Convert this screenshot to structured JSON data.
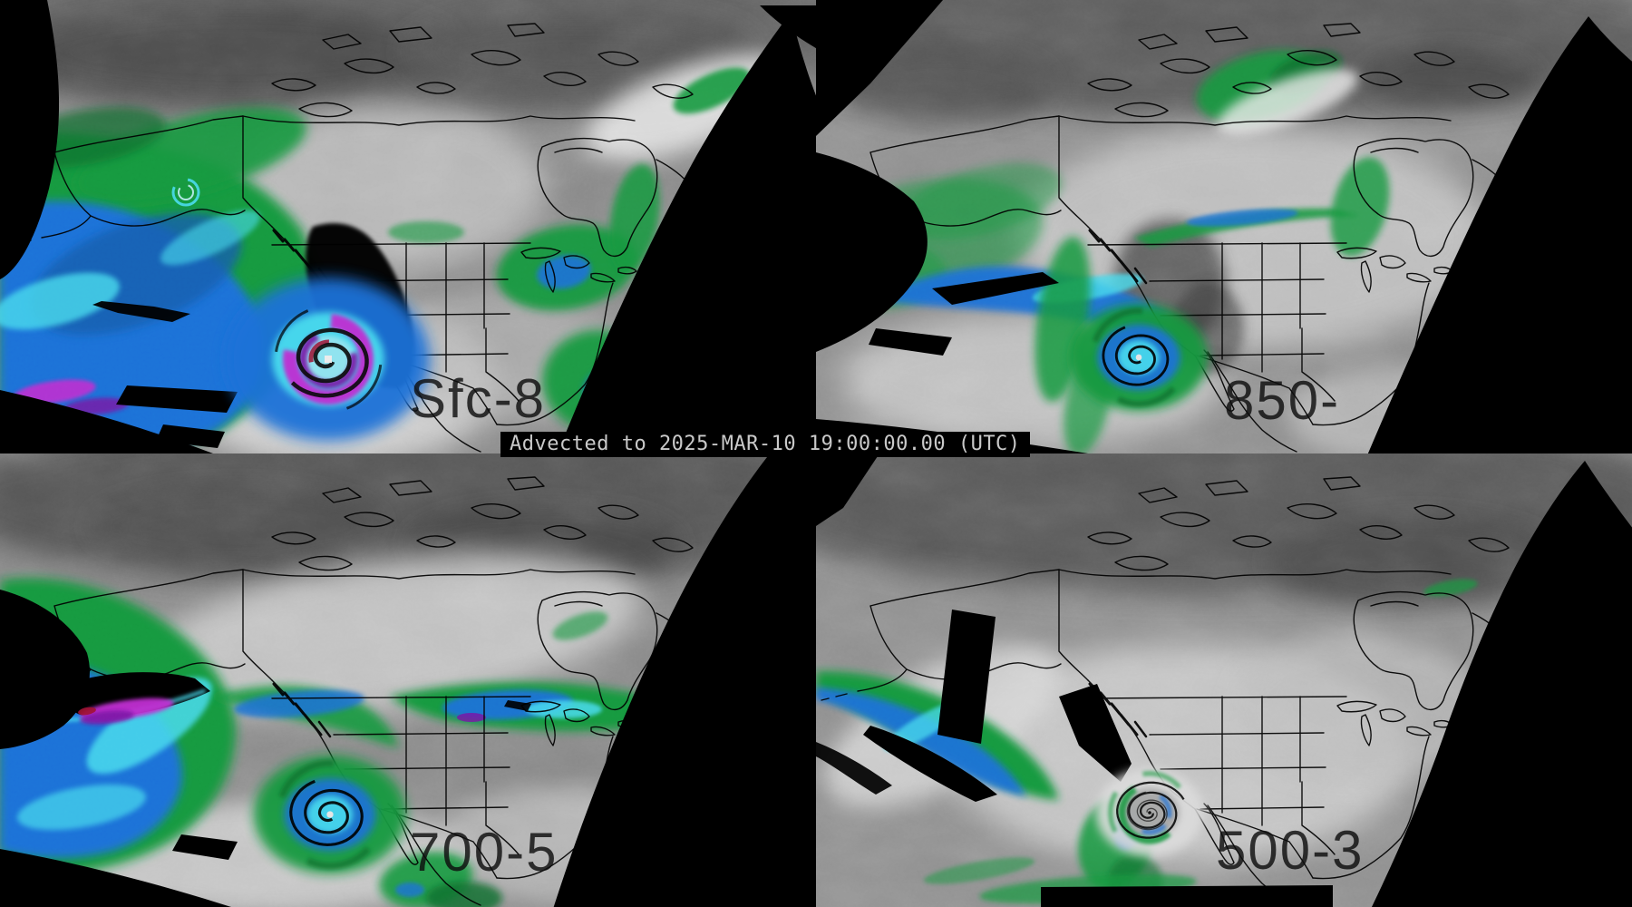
{
  "figure": {
    "caption": "Advected to 2025-MAR-10 19:00:00.00 (UTC)",
    "panels": [
      {
        "label": "Sfc-8"
      },
      {
        "label": "850-"
      },
      {
        "label": "700-5"
      },
      {
        "label": "500-3"
      }
    ],
    "palette": {
      "background": "#000000",
      "map_lines": "#000000",
      "gray_dark": "#4a4a4a",
      "gray_mid": "#8c8c8c",
      "gray_bright": "#d8d8d8",
      "moist_green": "#159a40",
      "moist_deep_green": "#0b702d",
      "moist_blue": "#1f72d8",
      "moist_deep_blue": "#155fae",
      "moist_cyan": "#4adcee",
      "moist_magenta": "#c02fd2",
      "moist_purple": "#7c12a6",
      "moist_red": "#a01232",
      "void_black": "#000000",
      "caption_text": "#c9c9c9"
    }
  }
}
